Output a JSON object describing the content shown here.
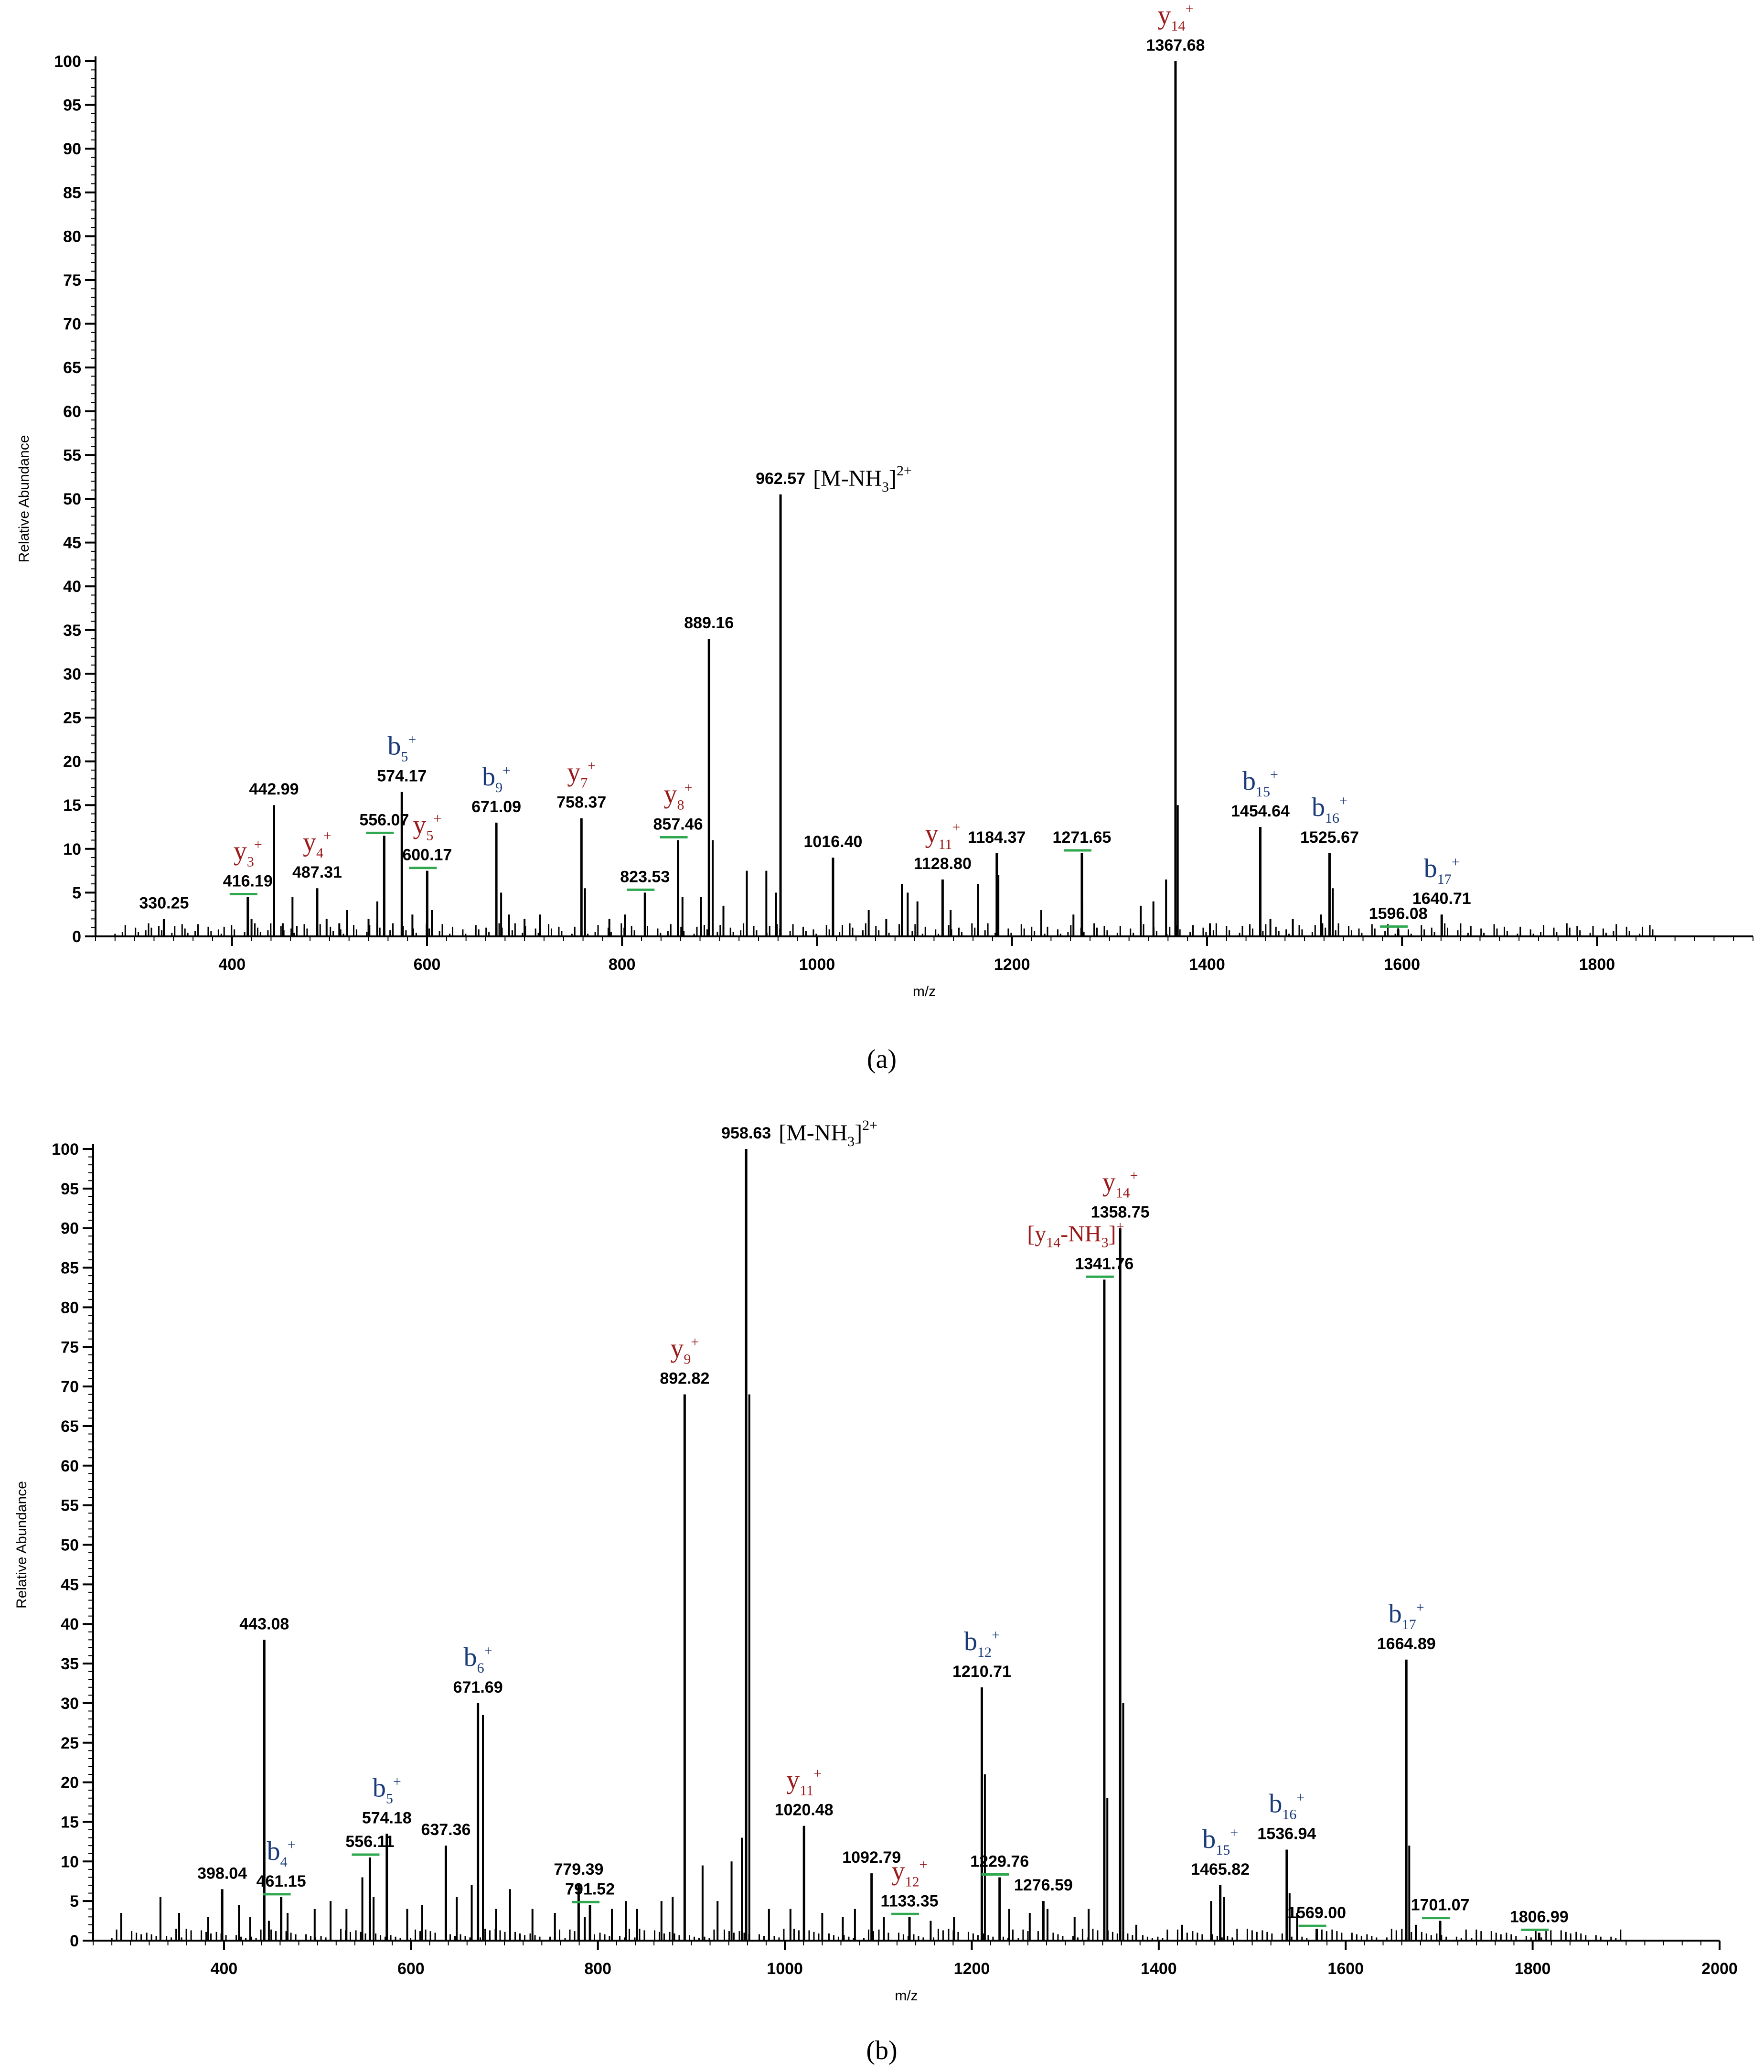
{
  "colors": {
    "y_ion": "#9b1b1b",
    "b_ion": "#1a3a7a",
    "marker": "#2fa84f",
    "axis": "#000000"
  },
  "chart_data": [
    {
      "type": "bar",
      "panel_label": "a",
      "xlabel": "m/z",
      "ylabel": "Relative Abundance",
      "xlim": [
        260,
        1960
      ],
      "ylim": [
        0,
        100
      ],
      "xticks": [
        400,
        600,
        800,
        1000,
        1200,
        1400,
        1600,
        1800
      ],
      "yticks": [
        0,
        5,
        10,
        15,
        20,
        25,
        30,
        35,
        40,
        45,
        50,
        55,
        60,
        65,
        70,
        75,
        80,
        85,
        90,
        95,
        100
      ],
      "peaks": [
        {
          "x": 330.25,
          "y": 2,
          "label": "330.25"
        },
        {
          "x": 416.19,
          "y": 4.5,
          "label": "416.19",
          "marker": true
        },
        {
          "x": 442.99,
          "y": 15,
          "label": "442.99"
        },
        {
          "x": 487.31,
          "y": 5.5,
          "label": "487.31"
        },
        {
          "x": 556.07,
          "y": 11.5,
          "label": "556.07",
          "marker": true
        },
        {
          "x": 574.17,
          "y": 16.5,
          "label": "574.17"
        },
        {
          "x": 600.17,
          "y": 7.5,
          "label": "600.17",
          "marker": true
        },
        {
          "x": 671.09,
          "y": 13,
          "label": "671.09"
        },
        {
          "x": 758.37,
          "y": 13.5,
          "label": "758.37"
        },
        {
          "x": 823.53,
          "y": 5,
          "label": "823.53",
          "marker": true
        },
        {
          "x": 857.46,
          "y": 11,
          "label": "857.46",
          "marker": true
        },
        {
          "x": 889.16,
          "y": 34,
          "label": "889.16"
        },
        {
          "x": 962.57,
          "y": 50.5,
          "label": "962.57"
        },
        {
          "x": 1016.4,
          "y": 9,
          "label": "1016.40"
        },
        {
          "x": 1128.8,
          "y": 6.5,
          "label": "1128.80"
        },
        {
          "x": 1184.37,
          "y": 9.5,
          "label": "1184.37"
        },
        {
          "x": 1271.65,
          "y": 9.5,
          "label": "1271.65",
          "marker": true
        },
        {
          "x": 1367.68,
          "y": 100,
          "label": "1367.68"
        },
        {
          "x": 1454.64,
          "y": 12.5,
          "label": "1454.64"
        },
        {
          "x": 1525.67,
          "y": 9.5,
          "label": "1525.67"
        },
        {
          "x": 1596.08,
          "y": 0.8,
          "label": "1596.08",
          "marker": true
        },
        {
          "x": 1640.71,
          "y": 2.5,
          "label": "1640.71"
        }
      ],
      "minor_peaks": [
        {
          "x": 420,
          "y": 2
        },
        {
          "x": 452,
          "y": 1.5
        },
        {
          "x": 462,
          "y": 4.5
        },
        {
          "x": 497,
          "y": 2
        },
        {
          "x": 510,
          "y": 1.5
        },
        {
          "x": 518,
          "y": 3
        },
        {
          "x": 540,
          "y": 2
        },
        {
          "x": 549,
          "y": 4
        },
        {
          "x": 585,
          "y": 2.5
        },
        {
          "x": 605,
          "y": 3
        },
        {
          "x": 676,
          "y": 5
        },
        {
          "x": 684,
          "y": 2.5
        },
        {
          "x": 700,
          "y": 2
        },
        {
          "x": 716,
          "y": 2.5
        },
        {
          "x": 762,
          "y": 5.5
        },
        {
          "x": 787,
          "y": 2
        },
        {
          "x": 803,
          "y": 2.5
        },
        {
          "x": 862,
          "y": 4.5
        },
        {
          "x": 881,
          "y": 4.5
        },
        {
          "x": 893,
          "y": 11
        },
        {
          "x": 904,
          "y": 3.5
        },
        {
          "x": 928,
          "y": 7.5
        },
        {
          "x": 948,
          "y": 7.5
        },
        {
          "x": 958,
          "y": 5
        },
        {
          "x": 1053,
          "y": 3
        },
        {
          "x": 1071,
          "y": 2
        },
        {
          "x": 1087,
          "y": 6
        },
        {
          "x": 1093,
          "y": 5
        },
        {
          "x": 1103,
          "y": 4
        },
        {
          "x": 1137,
          "y": 3
        },
        {
          "x": 1165,
          "y": 6
        },
        {
          "x": 1186,
          "y": 7
        },
        {
          "x": 1230,
          "y": 3
        },
        {
          "x": 1263,
          "y": 2.5
        },
        {
          "x": 1272,
          "y": 4
        },
        {
          "x": 1332,
          "y": 3.5
        },
        {
          "x": 1345,
          "y": 4
        },
        {
          "x": 1358,
          "y": 6.5
        },
        {
          "x": 1370,
          "y": 15
        },
        {
          "x": 1403,
          "y": 1.5
        },
        {
          "x": 1465,
          "y": 2
        },
        {
          "x": 1488,
          "y": 2
        },
        {
          "x": 1517,
          "y": 2.5
        },
        {
          "x": 1529,
          "y": 5.5
        }
      ],
      "ion_labels": [
        {
          "ion": "y",
          "sub": "3",
          "sup": "+",
          "x": 416.19
        },
        {
          "ion": "y",
          "sub": "4",
          "sup": "+",
          "x": 487.31
        },
        {
          "ion": "b",
          "sub": "5",
          "sup": "+",
          "x": 574.17
        },
        {
          "ion": "y",
          "sub": "5",
          "sup": "+",
          "x": 600.17
        },
        {
          "ion": "b",
          "sub": "9",
          "sup": "+",
          "x": 671.09
        },
        {
          "ion": "y",
          "sub": "7",
          "sup": "+",
          "x": 758.37
        },
        {
          "ion": "y",
          "sub": "8",
          "sup": "+",
          "x": 857.46
        },
        {
          "ion": "y",
          "sub": "11",
          "sup": "+",
          "x": 1128.8
        },
        {
          "ion": "y",
          "sub": "14",
          "sup": "+",
          "x": 1367.68
        },
        {
          "ion": "b",
          "sub": "15",
          "sup": "+",
          "x": 1454.64
        },
        {
          "ion": "b",
          "sub": "16",
          "sup": "+",
          "x": 1525.67
        },
        {
          "ion": "b",
          "sub": "17",
          "sup": "+",
          "x": 1640.71
        }
      ],
      "precursor_label": {
        "text": "[M-NH",
        "sub": "3",
        "close": "]",
        "sup": "2+",
        "x": 962.57
      }
    },
    {
      "type": "bar",
      "panel_label": "b",
      "xlabel": "m/z",
      "ylabel": "Relative Abundance",
      "xlim": [
        260,
        2000
      ],
      "ylim": [
        0,
        100
      ],
      "xticks": [
        400,
        600,
        800,
        1000,
        1200,
        1400,
        1600,
        1800,
        2000
      ],
      "yticks": [
        0,
        5,
        10,
        15,
        20,
        25,
        30,
        35,
        40,
        45,
        50,
        55,
        60,
        65,
        70,
        75,
        80,
        85,
        90,
        95,
        100
      ],
      "peaks": [
        {
          "x": 398.04,
          "y": 6.5,
          "label": "398.04"
        },
        {
          "x": 443.08,
          "y": 38,
          "label": "443.08"
        },
        {
          "x": 461.15,
          "y": 5.5,
          "label": "461.15",
          "marker": true
        },
        {
          "x": 556.11,
          "y": 10.5,
          "label": "556.11",
          "marker": true
        },
        {
          "x": 574.18,
          "y": 13.5,
          "label": "574.18"
        },
        {
          "x": 637.36,
          "y": 12,
          "label": "637.36"
        },
        {
          "x": 671.69,
          "y": 30,
          "label": "671.69"
        },
        {
          "x": 779.39,
          "y": 7,
          "label": "779.39"
        },
        {
          "x": 791.52,
          "y": 4.5,
          "label": "791.52",
          "marker": true
        },
        {
          "x": 892.82,
          "y": 69,
          "label": "892.82"
        },
        {
          "x": 958.63,
          "y": 100,
          "label": "958.63"
        },
        {
          "x": 1020.48,
          "y": 14.5,
          "label": "1020.48"
        },
        {
          "x": 1092.79,
          "y": 8.5,
          "label": "1092.79"
        },
        {
          "x": 1133.35,
          "y": 3,
          "label": "1133.35",
          "marker": true
        },
        {
          "x": 1210.71,
          "y": 32,
          "label": "1210.71"
        },
        {
          "x": 1229.76,
          "y": 8,
          "label": "1229.76",
          "marker": true
        },
        {
          "x": 1276.59,
          "y": 5,
          "label": "1276.59"
        },
        {
          "x": 1341.76,
          "y": 83.5,
          "label": "1341.76",
          "marker": true
        },
        {
          "x": 1358.75,
          "y": 90,
          "label": "1358.75"
        },
        {
          "x": 1465.82,
          "y": 7,
          "label": "1465.82"
        },
        {
          "x": 1536.94,
          "y": 11.5,
          "label": "1536.94"
        },
        {
          "x": 1569.0,
          "y": 1.5,
          "label": "1569.00",
          "marker": true
        },
        {
          "x": 1664.89,
          "y": 35.5,
          "label": "1664.89"
        },
        {
          "x": 1701.07,
          "y": 2.5,
          "label": "1701.07",
          "marker": true
        },
        {
          "x": 1806.99,
          "y": 1,
          "label": "1806.99",
          "marker": true
        }
      ],
      "minor_peaks": [
        {
          "x": 290,
          "y": 3.5
        },
        {
          "x": 332,
          "y": 5.5
        },
        {
          "x": 352,
          "y": 3.5
        },
        {
          "x": 383,
          "y": 3
        },
        {
          "x": 416,
          "y": 4.5
        },
        {
          "x": 428,
          "y": 3
        },
        {
          "x": 448,
          "y": 2.5
        },
        {
          "x": 468,
          "y": 3.5
        },
        {
          "x": 497,
          "y": 4
        },
        {
          "x": 514,
          "y": 5
        },
        {
          "x": 531,
          "y": 4
        },
        {
          "x": 548,
          "y": 8
        },
        {
          "x": 560,
          "y": 5.5
        },
        {
          "x": 596,
          "y": 4
        },
        {
          "x": 612,
          "y": 4.5
        },
        {
          "x": 649,
          "y": 5.5
        },
        {
          "x": 665,
          "y": 7
        },
        {
          "x": 677,
          "y": 28.5
        },
        {
          "x": 691,
          "y": 4
        },
        {
          "x": 706,
          "y": 6.5
        },
        {
          "x": 730,
          "y": 4
        },
        {
          "x": 754,
          "y": 3.5
        },
        {
          "x": 786,
          "y": 3
        },
        {
          "x": 815,
          "y": 4
        },
        {
          "x": 830,
          "y": 5
        },
        {
          "x": 842,
          "y": 4
        },
        {
          "x": 868,
          "y": 5
        },
        {
          "x": 880,
          "y": 5.5
        },
        {
          "x": 912,
          "y": 9.5
        },
        {
          "x": 928,
          "y": 5
        },
        {
          "x": 943,
          "y": 10
        },
        {
          "x": 954,
          "y": 13
        },
        {
          "x": 962,
          "y": 69
        },
        {
          "x": 983,
          "y": 4
        },
        {
          "x": 1006,
          "y": 4
        },
        {
          "x": 1040,
          "y": 3.5
        },
        {
          "x": 1062,
          "y": 3
        },
        {
          "x": 1075,
          "y": 4
        },
        {
          "x": 1106,
          "y": 3
        },
        {
          "x": 1156,
          "y": 2.5
        },
        {
          "x": 1181,
          "y": 3
        },
        {
          "x": 1214,
          "y": 21
        },
        {
          "x": 1240,
          "y": 4
        },
        {
          "x": 1262,
          "y": 3.5
        },
        {
          "x": 1281,
          "y": 4
        },
        {
          "x": 1310,
          "y": 3
        },
        {
          "x": 1325,
          "y": 4
        },
        {
          "x": 1345,
          "y": 18
        },
        {
          "x": 1362,
          "y": 30
        },
        {
          "x": 1376,
          "y": 2
        },
        {
          "x": 1425,
          "y": 2
        },
        {
          "x": 1456,
          "y": 5
        },
        {
          "x": 1470,
          "y": 5.5
        },
        {
          "x": 1540,
          "y": 6
        },
        {
          "x": 1548,
          "y": 3.5
        },
        {
          "x": 1668,
          "y": 12
        },
        {
          "x": 1675,
          "y": 2
        }
      ],
      "ion_labels": [
        {
          "ion": "b",
          "sub": "4",
          "sup": "+",
          "x": 461.15
        },
        {
          "ion": "b",
          "sub": "5",
          "sup": "+",
          "x": 574.18
        },
        {
          "ion": "b",
          "sub": "6",
          "sup": "+",
          "x": 671.69
        },
        {
          "ion": "y",
          "sub": "9",
          "sup": "+",
          "x": 892.82
        },
        {
          "ion": "y",
          "sub": "11",
          "sup": "+",
          "x": 1020.48
        },
        {
          "ion": "y",
          "sub": "12",
          "sup": "+",
          "x": 1133.35
        },
        {
          "ion": "b",
          "sub": "12",
          "sup": "+",
          "x": 1210.71
        },
        {
          "ion": "y",
          "sub": "14",
          "sup": "+",
          "x": 1358.75
        },
        {
          "ion": "b",
          "sub": "15",
          "sup": "+",
          "x": 1465.82
        },
        {
          "ion": "b",
          "sub": "16",
          "sup": "+",
          "x": 1536.94
        },
        {
          "ion": "b",
          "sub": "17",
          "sup": "+",
          "x": 1664.89
        }
      ],
      "ion_labels_complex": [
        {
          "open": "[y",
          "sub": "14",
          "mid": "-NH",
          "sub2": "3",
          "close": "]",
          "sup": "+",
          "x": 1341.76
        }
      ],
      "precursor_label": {
        "text": "[M-NH",
        "sub": "3",
        "close": "]",
        "sup": "2+",
        "x": 958.63
      }
    }
  ],
  "captions": {
    "a": "(a)",
    "b": "(b)"
  }
}
